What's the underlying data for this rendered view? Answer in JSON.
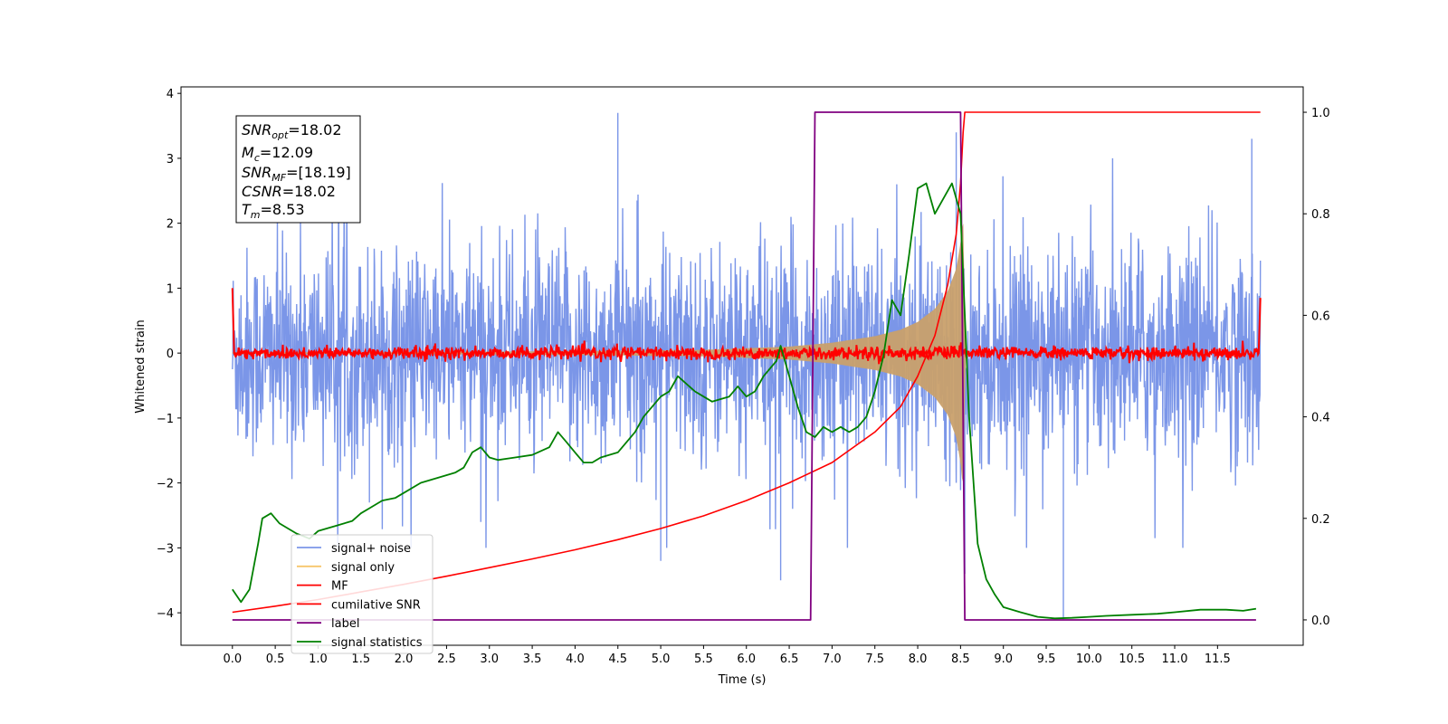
{
  "chart_data": {
    "type": "line",
    "xlabel": "Time (s)",
    "ylabel": "Whitened strain",
    "xlim": [
      -0.6,
      12.5
    ],
    "ylim": [
      -4.5,
      4.1
    ],
    "y2lim": [
      -0.05,
      1.05
    ],
    "x_ticks": [
      0.0,
      0.5,
      1.0,
      1.5,
      2.0,
      2.5,
      3.0,
      3.5,
      4.0,
      4.5,
      5.0,
      5.5,
      6.0,
      6.5,
      7.0,
      7.5,
      8.0,
      8.5,
      9.0,
      9.5,
      10.0,
      10.5,
      11.0,
      11.5
    ],
    "x_tick_labels": [
      "0.0",
      "0.5",
      "1.0",
      "1.5",
      "2.0",
      "2.5",
      "3.0",
      "3.5",
      "4.0",
      "4.5",
      "5.0",
      "5.5",
      "6.0",
      "6.5",
      "7.0",
      "7.5",
      "8.0",
      "8.5",
      "9.0",
      "9.5",
      "10.0",
      "10.5",
      "11.0",
      "11.5"
    ],
    "y_ticks": [
      4,
      3,
      2,
      1,
      0,
      -1,
      -2,
      -3,
      -4
    ],
    "y_tick_labels": [
      "4",
      "3",
      "2",
      "1",
      "0",
      "−1",
      "−2",
      "−3",
      "−4"
    ],
    "y2_ticks": [
      1.0,
      0.8,
      0.6,
      0.4,
      0.2,
      0.0
    ],
    "y2_tick_labels": [
      "1.0",
      "0.8",
      "0.6",
      "0.4",
      "0.2",
      "0.0"
    ],
    "legend_position": "bottom-left",
    "grid": false,
    "annotations": {
      "snr_opt": {
        "name": "SNR",
        "sub": "opt",
        "value": "=18.02"
      },
      "mc": {
        "name": "M",
        "sub": "c",
        "value": "=12.09"
      },
      "snr_mf": {
        "name": "SNR",
        "sub": "MF",
        "value": "=[18.19]"
      },
      "csnr": {
        "name": "CSNR",
        "sub": "",
        "value": "=18.02"
      },
      "tm": {
        "name": "T",
        "sub": "m",
        "value": "=8.53"
      }
    },
    "series": [
      {
        "name": "signal+ noise",
        "color": "#7b96e8",
        "axis": "left",
        "kind": "noise",
        "x_range": [
          0.0,
          12.0
        ],
        "spread_std": 1.0,
        "spikes": [
          [
            4.5,
            3.7
          ],
          [
            5.0,
            -3.2
          ],
          [
            6.4,
            -3.5
          ],
          [
            8.45,
            3.4
          ],
          [
            8.55,
            -3.4
          ],
          [
            9.7,
            -4.1
          ],
          [
            11.9,
            3.3
          ],
          [
            1.6,
            -2.3
          ],
          [
            2.9,
            -2.6
          ]
        ]
      },
      {
        "name": "signal only",
        "color": "#c9a06c",
        "axis": "left",
        "kind": "chirp",
        "x": [
          0.0,
          2.0,
          4.0,
          5.5,
          6.5,
          7.0,
          7.5,
          7.8,
          8.0,
          8.2,
          8.35,
          8.45,
          8.5,
          8.53,
          8.56
        ],
        "envelope": [
          0.01,
          0.015,
          0.03,
          0.05,
          0.1,
          0.16,
          0.26,
          0.36,
          0.48,
          0.68,
          0.95,
          1.3,
          1.7,
          2.1,
          0.0
        ]
      },
      {
        "name": "MF",
        "color": "#ff0000",
        "axis": "left",
        "kind": "mf",
        "x_range": [
          0.0,
          12.0
        ],
        "baseline": 0.0,
        "noise_amp": 0.05,
        "edges": [
          [
            0.0,
            1.0
          ],
          [
            0.02,
            0.0
          ],
          [
            11.98,
            0.0
          ],
          [
            12.0,
            0.85
          ]
        ]
      },
      {
        "name": "cumilative SNR",
        "color": "#ff0000",
        "axis": "right",
        "x": [
          0.0,
          0.5,
          1.0,
          1.5,
          2.0,
          2.5,
          3.0,
          3.5,
          4.0,
          4.5,
          5.0,
          5.5,
          6.0,
          6.5,
          7.0,
          7.5,
          7.8,
          8.0,
          8.2,
          8.35,
          8.45,
          8.5,
          8.53,
          8.55,
          12.0
        ],
        "values": [
          0.015,
          0.027,
          0.04,
          0.055,
          0.07,
          0.086,
          0.103,
          0.12,
          0.138,
          0.158,
          0.18,
          0.205,
          0.235,
          0.27,
          0.31,
          0.37,
          0.42,
          0.48,
          0.56,
          0.66,
          0.76,
          0.86,
          0.96,
          1.0,
          1.0
        ]
      },
      {
        "name": "label",
        "color": "#800080",
        "axis": "right",
        "x": [
          0.0,
          6.75,
          6.8,
          8.5,
          8.55,
          11.95
        ],
        "values": [
          0.0,
          0.0,
          1.0,
          1.0,
          0.0,
          0.0
        ]
      },
      {
        "name": "signal statistics",
        "color": "#008000",
        "axis": "right",
        "x": [
          0.0,
          0.1,
          0.2,
          0.3,
          0.35,
          0.45,
          0.55,
          0.65,
          0.75,
          0.9,
          1.0,
          1.1,
          1.2,
          1.4,
          1.5,
          1.6,
          1.75,
          1.9,
          2.0,
          2.2,
          2.4,
          2.6,
          2.7,
          2.8,
          2.9,
          3.0,
          3.1,
          3.3,
          3.5,
          3.7,
          3.8,
          3.9,
          4.0,
          4.1,
          4.2,
          4.3,
          4.5,
          4.7,
          4.8,
          4.9,
          5.0,
          5.1,
          5.2,
          5.4,
          5.5,
          5.6,
          5.8,
          5.9,
          6.0,
          6.1,
          6.2,
          6.3,
          6.35,
          6.4,
          6.5,
          6.6,
          6.7,
          6.8,
          6.9,
          7.0,
          7.1,
          7.2,
          7.3,
          7.4,
          7.5,
          7.6,
          7.7,
          7.8,
          7.9,
          8.0,
          8.1,
          8.2,
          8.3,
          8.4,
          8.5,
          8.6,
          8.7,
          8.8,
          8.9,
          9.0,
          9.2,
          9.4,
          9.6,
          9.8,
          10.0,
          10.2,
          10.5,
          10.8,
          11.0,
          11.3,
          11.6,
          11.8,
          11.95
        ],
        "values": [
          0.06,
          0.035,
          0.06,
          0.15,
          0.2,
          0.21,
          0.19,
          0.18,
          0.17,
          0.16,
          0.175,
          0.18,
          0.185,
          0.195,
          0.21,
          0.22,
          0.235,
          0.24,
          0.25,
          0.27,
          0.28,
          0.29,
          0.3,
          0.33,
          0.34,
          0.32,
          0.315,
          0.32,
          0.325,
          0.34,
          0.37,
          0.35,
          0.33,
          0.31,
          0.31,
          0.32,
          0.33,
          0.37,
          0.4,
          0.42,
          0.44,
          0.45,
          0.48,
          0.45,
          0.44,
          0.43,
          0.44,
          0.46,
          0.44,
          0.45,
          0.48,
          0.5,
          0.51,
          0.54,
          0.48,
          0.42,
          0.37,
          0.36,
          0.38,
          0.37,
          0.38,
          0.37,
          0.38,
          0.4,
          0.45,
          0.52,
          0.63,
          0.6,
          0.72,
          0.85,
          0.86,
          0.8,
          0.83,
          0.86,
          0.8,
          0.4,
          0.15,
          0.08,
          0.05,
          0.025,
          0.015,
          0.006,
          0.003,
          0.004,
          0.006,
          0.008,
          0.01,
          0.012,
          0.015,
          0.02,
          0.02,
          0.018,
          0.022
        ]
      }
    ]
  }
}
